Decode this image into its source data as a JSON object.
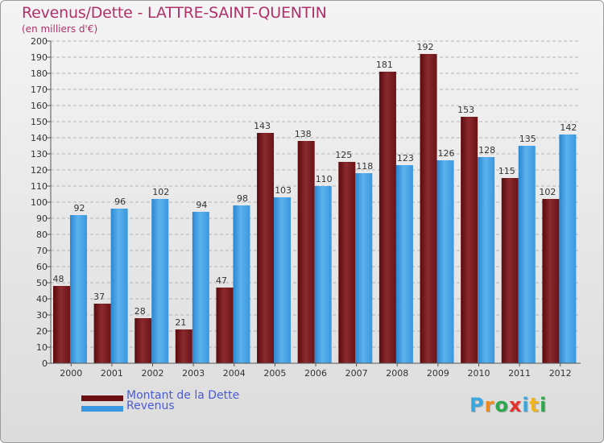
{
  "header": {
    "title": "Revenus/Dette - LATTRE-SAINT-QUENTIN",
    "subtitle": "(en milliers d'€)"
  },
  "chart_data": {
    "type": "bar",
    "title": "Revenus/Dette - LATTRE-SAINT-QUENTIN",
    "ylabel": "(en milliers d'€)",
    "xlabel": "",
    "categories": [
      "2000",
      "2001",
      "2002",
      "2003",
      "2004",
      "2005",
      "2006",
      "2007",
      "2008",
      "2009",
      "2010",
      "2011",
      "2012"
    ],
    "series": [
      {
        "name": "Montant de la Dette",
        "color": "#7a1a1e",
        "values": [
          48,
          37,
          28,
          21,
          47,
          143,
          138,
          125,
          181,
          192,
          153,
          115,
          102
        ]
      },
      {
        "name": "Revenus",
        "color": "#3a97df",
        "values": [
          92,
          96,
          102,
          94,
          98,
          103,
          110,
          118,
          123,
          126,
          128,
          135,
          142
        ]
      }
    ],
    "ylim": [
      0,
      200
    ],
    "ytick_step": 10,
    "grid": true,
    "legend_position": "bottom-left"
  },
  "legend": {
    "items": [
      {
        "label": "Montant de la Dette",
        "color": "#6a1014"
      },
      {
        "label": "Revenus",
        "color": "#3a97df"
      }
    ]
  },
  "logo": {
    "letters": [
      "P",
      "r",
      "o",
      "x",
      "i",
      "t",
      "i"
    ],
    "colors": [
      "#3aa7e0",
      "#f08a1c",
      "#2ea84c",
      "#e3312d",
      "#3aa7e0",
      "#f0b41c",
      "#2ea84c"
    ]
  }
}
